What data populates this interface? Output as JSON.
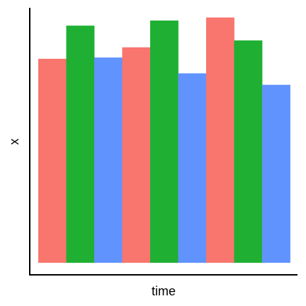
{
  "chart_data": {
    "type": "bar",
    "xlabel": "time",
    "ylabel": "x",
    "title": "",
    "categories": [
      "",
      "",
      ""
    ],
    "series": [
      {
        "color": "#F8766D",
        "values": [
          0.8,
          0.845,
          0.962
        ]
      },
      {
        "color": "#1FB033",
        "values": [
          0.93,
          0.95,
          0.872
        ]
      },
      {
        "color": "#6193FF",
        "values": [
          0.805,
          0.743,
          0.698
        ]
      }
    ],
    "ylim": [
      0,
      1
    ],
    "legend": "none",
    "grid": false,
    "axis_ticks": false
  }
}
